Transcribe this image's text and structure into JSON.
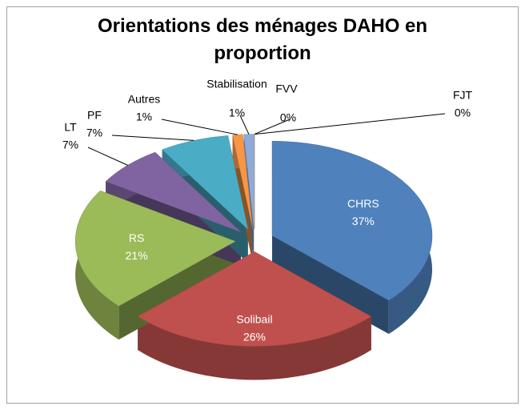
{
  "chart_data": {
    "type": "pie",
    "title": "Orientations des ménages DAHO en proportion",
    "categories": [
      "CHRS",
      "Solibail",
      "RS",
      "LT",
      "PF",
      "Autres",
      "Stabilisation",
      "FVV",
      "FJT"
    ],
    "values": [
      37,
      26,
      21,
      7,
      7,
      1,
      1,
      0,
      0
    ],
    "value_labels": [
      "37%",
      "26%",
      "21%",
      "7%",
      "7%",
      "1%",
      "1%",
      "0%",
      "0%"
    ],
    "colors": [
      "#4f81bd",
      "#c0504d",
      "#9bbb59",
      "#8064a2",
      "#4bacc6",
      "#f79646",
      "#8eaadb",
      "#c09fbf",
      "#d9c58f"
    ]
  }
}
